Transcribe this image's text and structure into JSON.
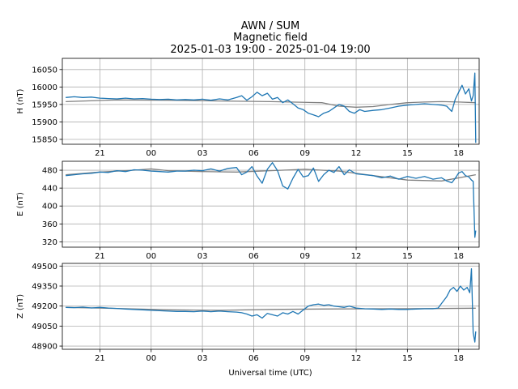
{
  "chart_data": {
    "type": "line",
    "title": [
      "AWN / SUM",
      "Magnetic field",
      "2025-01-03 19:00 - 2025-01-04 19:00"
    ],
    "xlabel": "Universal time (UTC)",
    "x_ticks": [
      {
        "hours": 2,
        "label": "21"
      },
      {
        "hours": 5,
        "label": "00"
      },
      {
        "hours": 8,
        "label": "03"
      },
      {
        "hours": 11,
        "label": "06"
      },
      {
        "hours": 14,
        "label": "09"
      },
      {
        "hours": 17,
        "label": "12"
      },
      {
        "hours": 20,
        "label": "15"
      },
      {
        "hours": 23,
        "label": "18"
      }
    ],
    "xlim_hours": [
      -0.2,
      24.2
    ],
    "grid": true,
    "panels": [
      {
        "ylabel": "H (nT)",
        "ylim": [
          15836,
          16082
        ],
        "yticks": [
          15850,
          15900,
          15950,
          16000,
          16050
        ],
        "baseline": {
          "x": [
            0,
            3,
            6,
            9,
            12,
            15,
            16,
            17,
            18,
            19,
            20,
            21,
            22,
            23,
            24
          ],
          "y": [
            15958,
            15963,
            15962,
            15960,
            15958,
            15955,
            15945,
            15942,
            15944,
            15950,
            15955,
            15957,
            15958,
            15957,
            15955
          ]
        },
        "series": [
          {
            "x": [
              0,
              0.5,
              1,
              1.5,
              2,
              2.5,
              3,
              3.5,
              4,
              4.5,
              5,
              5.5,
              6,
              6.5,
              7,
              7.5,
              8,
              8.5,
              9,
              9.5,
              10,
              10.3,
              10.6,
              10.9,
              11.2,
              11.5,
              11.8,
              12.1,
              12.4,
              12.7,
              13,
              13.3,
              13.6,
              13.9,
              14.2,
              14.5,
              14.8,
              15.1,
              15.4,
              15.7,
              16,
              16.3,
              16.6,
              16.9,
              17.2,
              17.5,
              18,
              18.5,
              19,
              19.5,
              20,
              20.5,
              21,
              21.5,
              22,
              22.3,
              22.6,
              22.8,
              23,
              23.2,
              23.4,
              23.6,
              23.75,
              23.85,
              23.95,
              24
            ],
            "y": [
              15970,
              15972,
              15970,
              15971,
              15968,
              15967,
              15966,
              15968,
              15966,
              15967,
              15965,
              15964,
              15965,
              15963,
              15964,
              15963,
              15965,
              15962,
              15966,
              15963,
              15970,
              15975,
              15962,
              15972,
              15985,
              15975,
              15982,
              15965,
              15970,
              15955,
              15963,
              15952,
              15940,
              15935,
              15925,
              15920,
              15915,
              15925,
              15930,
              15940,
              15950,
              15945,
              15930,
              15925,
              15935,
              15930,
              15933,
              15935,
              15940,
              15945,
              15948,
              15950,
              15952,
              15950,
              15948,
              15945,
              15930,
              15965,
              15985,
              16005,
              15980,
              15995,
              15960,
              15975,
              16040,
              15840
            ]
          }
        ]
      },
      {
        "ylabel": "E (nT)",
        "ylim": [
          308,
          500
        ],
        "yticks": [
          320,
          360,
          400,
          440,
          480
        ],
        "baseline": {
          "x": [
            0,
            2,
            4,
            5,
            6,
            8,
            10,
            12,
            14,
            16,
            18,
            20,
            22,
            24
          ],
          "y": [
            470,
            476,
            480,
            483,
            479,
            477,
            476,
            479,
            482,
            478,
            468,
            458,
            456,
            470
          ]
        },
        "series": [
          {
            "x": [
              0,
              0.5,
              1,
              1.5,
              2,
              2.5,
              3,
              3.5,
              4,
              4.5,
              5,
              5.5,
              6,
              6.5,
              7,
              7.5,
              8,
              8.5,
              9,
              9.5,
              10,
              10.3,
              10.6,
              10.9,
              11.2,
              11.5,
              11.8,
              12.1,
              12.4,
              12.7,
              13,
              13.3,
              13.6,
              13.9,
              14.2,
              14.5,
              14.8,
              15.1,
              15.4,
              15.7,
              16,
              16.3,
              16.6,
              17,
              17.5,
              18,
              18.5,
              19,
              19.5,
              20,
              20.5,
              21,
              21.5,
              22,
              22.3,
              22.6,
              22.8,
              23,
              23.2,
              23.4,
              23.6,
              23.75,
              23.85,
              23.95,
              24
            ],
            "y": [
              468,
              470,
              472,
              473,
              476,
              475,
              479,
              477,
              481,
              480,
              478,
              477,
              476,
              478,
              478,
              480,
              479,
              483,
              478,
              484,
              486,
              470,
              476,
              488,
              467,
              451,
              482,
              497,
              479,
              445,
              438,
              462,
              482,
              465,
              468,
              485,
              455,
              470,
              480,
              475,
              488,
              470,
              481,
              472,
              470,
              468,
              463,
              467,
              460,
              466,
              462,
              466,
              460,
              463,
              456,
              452,
              462,
              474,
              477,
              468,
              465,
              458,
              455,
              330,
              345
            ]
          }
        ]
      },
      {
        "ylabel": "Z (nT)",
        "ylim": [
          48876,
          49520
        ],
        "yticks": [
          48900,
          49050,
          49200,
          49350,
          49500
        ],
        "baseline": {
          "x": [
            0,
            3,
            6,
            9,
            12,
            15,
            18,
            21,
            24
          ],
          "y": [
            49190,
            49182,
            49172,
            49168,
            49175,
            49178,
            49180,
            49181,
            49184
          ]
        },
        "series": [
          {
            "x": [
              0,
              0.5,
              1,
              1.5,
              2,
              2.5,
              3,
              3.5,
              4,
              4.5,
              5,
              5.5,
              6,
              6.5,
              7,
              7.5,
              8,
              8.5,
              9,
              9.5,
              10,
              10.3,
              10.6,
              10.9,
              11.2,
              11.5,
              11.8,
              12.1,
              12.4,
              12.7,
              13,
              13.3,
              13.6,
              13.9,
              14.2,
              14.5,
              14.8,
              15.1,
              15.4,
              15.7,
              16,
              16.3,
              16.6,
              17,
              17.5,
              18,
              18.5,
              19,
              19.5,
              20,
              20.5,
              21,
              21.5,
              21.8,
              22,
              22.3,
              22.5,
              22.7,
              22.9,
              23.1,
              23.3,
              23.5,
              23.65,
              23.75,
              23.85,
              23.95,
              24
            ],
            "y": [
              49190,
              49188,
              49192,
              49186,
              49190,
              49185,
              49182,
              49178,
              49175,
              49172,
              49168,
              49165,
              49162,
              49160,
              49160,
              49158,
              49162,
              49158,
              49162,
              49158,
              49155,
              49150,
              49140,
              49125,
              49135,
              49110,
              49145,
              49135,
              49125,
              49150,
              49140,
              49160,
              49140,
              49170,
              49200,
              49210,
              49215,
              49205,
              49210,
              49200,
              49195,
              49190,
              49200,
              49185,
              49180,
              49178,
              49175,
              49178,
              49175,
              49175,
              49178,
              49180,
              49180,
              49185,
              49220,
              49270,
              49320,
              49340,
              49310,
              49350,
              49320,
              49340,
              49300,
              49480,
              49000,
              48930,
              49010
            ]
          }
        ]
      }
    ]
  }
}
